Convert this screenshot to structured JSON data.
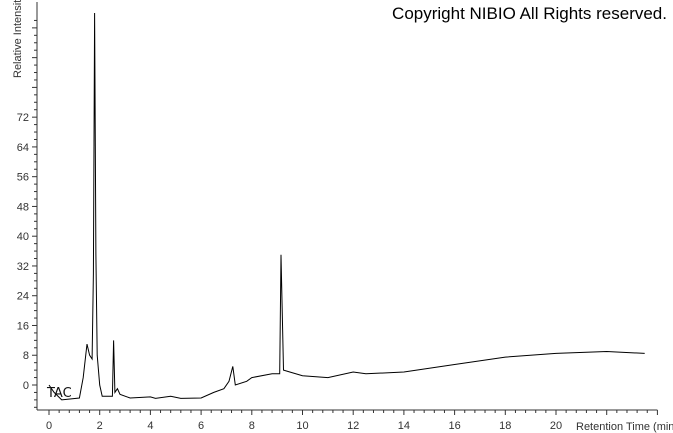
{
  "copyright": "Copyright NIBIO All Rights reserved.",
  "chart_data": {
    "type": "line",
    "xlabel": "Retention Time (min)",
    "ylabel": "Relative Intensity",
    "trace_label": "TAC",
    "xlim": [
      0,
      24
    ],
    "ylim": [
      -7,
      100
    ],
    "x_ticks": [
      0,
      2,
      4,
      6,
      8,
      10,
      12,
      14,
      16,
      18,
      20
    ],
    "y_ticks": [
      0,
      8,
      16,
      24,
      32,
      40,
      48,
      56,
      64,
      72
    ],
    "line_color": "#000000",
    "series": [
      {
        "x": [
          0,
          0.2,
          0.5,
          1.2,
          1.35,
          1.5,
          1.6,
          1.7,
          1.75,
          1.8,
          1.85,
          1.9,
          2.0,
          2.1,
          2.5,
          2.55,
          2.6,
          2.7,
          2.8,
          3.2,
          4.0,
          4.2,
          4.8,
          5.2,
          6.0,
          6.5,
          6.9,
          7.1,
          7.25,
          7.35,
          7.8,
          8.0,
          8.8,
          9.1,
          9.15,
          9.25,
          9.5,
          10.0,
          11.0,
          12.0,
          12.5,
          14.0,
          16.0,
          18.0,
          20.0,
          22.0,
          23.5
        ],
        "y": [
          0,
          -2,
          -4,
          -3.5,
          2,
          11,
          8,
          7,
          30,
          100,
          35,
          8,
          0,
          -3,
          -3,
          12,
          -2,
          -1,
          -2.5,
          -3.5,
          -3.2,
          -3.6,
          -3,
          -3.6,
          -3.5,
          -2,
          -1,
          1,
          5,
          0,
          1,
          2,
          3,
          3,
          35,
          4,
          3.5,
          2.5,
          2,
          3.5,
          3,
          3.5,
          5.5,
          7.5,
          8.5,
          9,
          8.5
        ]
      }
    ]
  }
}
